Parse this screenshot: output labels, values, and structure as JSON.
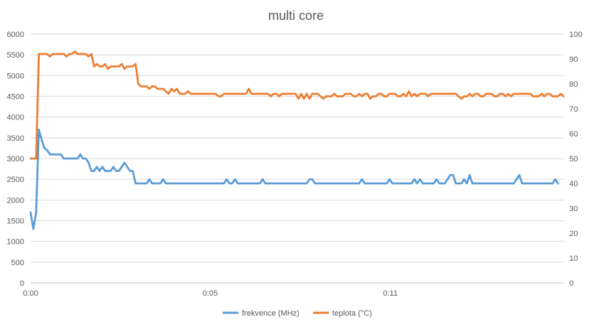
{
  "chart_data": {
    "type": "line",
    "title": "multi core",
    "xlabel": "",
    "ylabel": "",
    "x_ticks": [
      "0:00",
      "0:05",
      "0:11"
    ],
    "y_left": {
      "ylim": [
        0,
        6000
      ],
      "ticks": [
        "0",
        "500",
        "1000",
        "1500",
        "2000",
        "2500",
        "3000",
        "3500",
        "4000",
        "4500",
        "5000",
        "5500",
        "6000"
      ]
    },
    "y_right": {
      "ylim": [
        0,
        100
      ],
      "ticks": [
        "0",
        "10",
        "20",
        "30",
        "40",
        "50",
        "60",
        "70",
        "80",
        "90",
        "100"
      ]
    },
    "grid": "horizontal",
    "legend": "bottom",
    "series": [
      {
        "name": "frekvence (MHz)",
        "axis": "left",
        "color": "#5B9BD5",
        "values": [
          1700,
          1300,
          1700,
          3700,
          3450,
          3250,
          3200,
          3100,
          3100,
          3100,
          3100,
          3100,
          3000,
          3000,
          3000,
          3000,
          3000,
          3000,
          3100,
          3000,
          3000,
          2900,
          2700,
          2700,
          2800,
          2700,
          2800,
          2700,
          2700,
          2700,
          2800,
          2700,
          2700,
          2800,
          2900,
          2800,
          2700,
          2700,
          2400,
          2400,
          2400,
          2400,
          2400,
          2500,
          2400,
          2400,
          2400,
          2400,
          2500,
          2400,
          2400,
          2400,
          2400,
          2400,
          2400,
          2400,
          2400,
          2400,
          2400,
          2400,
          2400,
          2400,
          2400,
          2400,
          2400,
          2400,
          2400,
          2400,
          2400,
          2400,
          2400,
          2500,
          2400,
          2400,
          2500,
          2400,
          2400,
          2400,
          2400,
          2400,
          2400,
          2400,
          2400,
          2400,
          2500,
          2400,
          2400,
          2400,
          2400,
          2400,
          2400,
          2400,
          2400,
          2400,
          2400,
          2400,
          2400,
          2400,
          2400,
          2400,
          2400,
          2500,
          2500,
          2400,
          2400,
          2400,
          2400,
          2400,
          2400,
          2400,
          2400,
          2400,
          2400,
          2400,
          2400,
          2400,
          2400,
          2400,
          2400,
          2400,
          2500,
          2400,
          2400,
          2400,
          2400,
          2400,
          2400,
          2400,
          2400,
          2400,
          2500,
          2400,
          2400,
          2400,
          2400,
          2400,
          2400,
          2400,
          2400,
          2500,
          2400,
          2500,
          2400,
          2400,
          2400,
          2400,
          2400,
          2500,
          2400,
          2400,
          2400,
          2500,
          2600,
          2600,
          2400,
          2400,
          2400,
          2500,
          2400,
          2600,
          2400,
          2400,
          2400,
          2400,
          2400,
          2400,
          2400,
          2400,
          2400,
          2400,
          2400,
          2400,
          2400,
          2400,
          2400,
          2400,
          2500,
          2600,
          2400,
          2400,
          2400,
          2400,
          2400,
          2400,
          2400,
          2400,
          2400,
          2400,
          2400,
          2400,
          2500,
          2400
        ]
      },
      {
        "name": "teplota (°C)",
        "axis": "right",
        "color": "#ED7D31",
        "values": [
          50,
          50,
          50,
          92,
          92,
          92,
          92,
          91,
          92,
          92,
          92,
          92,
          92,
          91,
          92,
          92,
          93,
          92,
          92,
          92,
          92,
          91,
          92,
          87,
          88,
          87,
          87,
          88,
          86,
          87,
          87,
          87,
          87,
          88,
          86,
          87,
          87,
          87,
          88,
          80,
          79,
          79,
          79,
          78,
          79,
          79,
          78,
          78,
          78,
          77,
          76,
          78,
          77,
          78,
          76,
          76,
          76,
          77,
          76,
          76,
          76,
          76,
          76,
          76,
          76,
          76,
          76,
          76,
          75,
          75,
          76,
          76,
          76,
          76,
          76,
          76,
          76,
          76,
          76,
          78,
          76,
          76,
          76,
          76,
          76,
          76,
          76,
          75,
          76,
          76,
          75,
          76,
          76,
          76,
          76,
          76,
          76,
          74,
          76,
          74,
          76,
          74,
          76,
          76,
          76,
          75,
          74,
          75,
          75,
          75,
          76,
          75,
          75,
          75,
          76,
          76,
          76,
          75,
          75,
          76,
          75,
          76,
          76,
          74,
          75,
          75,
          76,
          76,
          75,
          75,
          76,
          76,
          76,
          75,
          75,
          76,
          75,
          77,
          75,
          76,
          75,
          76,
          76,
          76,
          75,
          76,
          76,
          76,
          76,
          76,
          76,
          76,
          76,
          76,
          76,
          75,
          74,
          75,
          75,
          76,
          75,
          76,
          76,
          75,
          75,
          76,
          76,
          76,
          75,
          75,
          76,
          76,
          75,
          76,
          75,
          76,
          76,
          76,
          76,
          76,
          76,
          76,
          75,
          75,
          75,
          76,
          75,
          76,
          76,
          75,
          75,
          75,
          76,
          75
        ]
      }
    ]
  }
}
